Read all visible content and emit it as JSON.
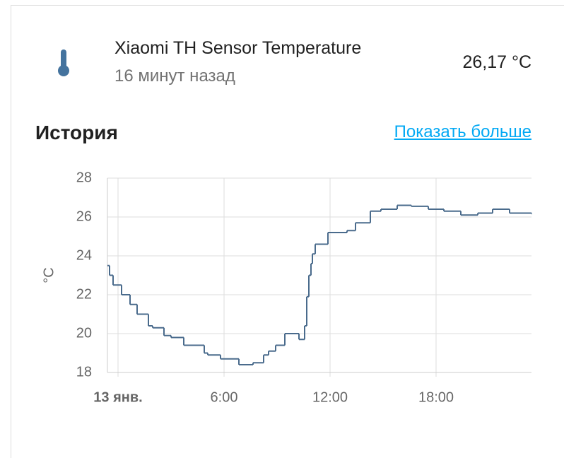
{
  "entity": {
    "name": "Xiaomi TH Sensor Temperature",
    "last_changed": "16 минут назад",
    "state": "26,17 °C"
  },
  "history": {
    "title": "История",
    "link": "Показать больше"
  },
  "chart_data": {
    "type": "line",
    "step": "after",
    "color": "#4a6b8c",
    "grid": true,
    "ylabel": "°C",
    "xlim": [
      -0.6,
      23.4
    ],
    "xticks": [
      {
        "value": 0,
        "label": "13 янв."
      },
      {
        "value": 6,
        "label": "6:00"
      },
      {
        "value": 12,
        "label": "12:00"
      },
      {
        "value": 18,
        "label": "18:00"
      }
    ],
    "ylim": [
      18,
      28
    ],
    "yticks": [
      18,
      20,
      22,
      24,
      26,
      28
    ],
    "x": [
      -0.6,
      -0.48,
      -0.28,
      0.2,
      0.68,
      1.08,
      1.72,
      1.96,
      2.6,
      3.0,
      3.72,
      4.88,
      5.08,
      5.8,
      6.84,
      7.64,
      8.24,
      8.52,
      8.92,
      9.44,
      10.24,
      10.56,
      10.68,
      10.8,
      10.92,
      11.0,
      11.16,
      11.88,
      12.96,
      13.44,
      14.28,
      14.88,
      15.8,
      16.6,
      17.56,
      18.44,
      19.4,
      20.36,
      21.2,
      22.16,
      23.4
    ],
    "values": [
      23.5,
      23.0,
      22.5,
      22.0,
      21.5,
      21.0,
      20.4,
      20.3,
      19.9,
      19.8,
      19.4,
      19.0,
      18.9,
      18.7,
      18.4,
      18.5,
      18.9,
      19.1,
      19.4,
      20.0,
      19.7,
      20.4,
      21.9,
      23.0,
      23.6,
      24.1,
      24.6,
      25.2,
      25.3,
      25.7,
      26.3,
      26.4,
      26.6,
      26.55,
      26.4,
      26.3,
      26.1,
      26.2,
      26.4,
      26.2,
      26.17
    ]
  }
}
